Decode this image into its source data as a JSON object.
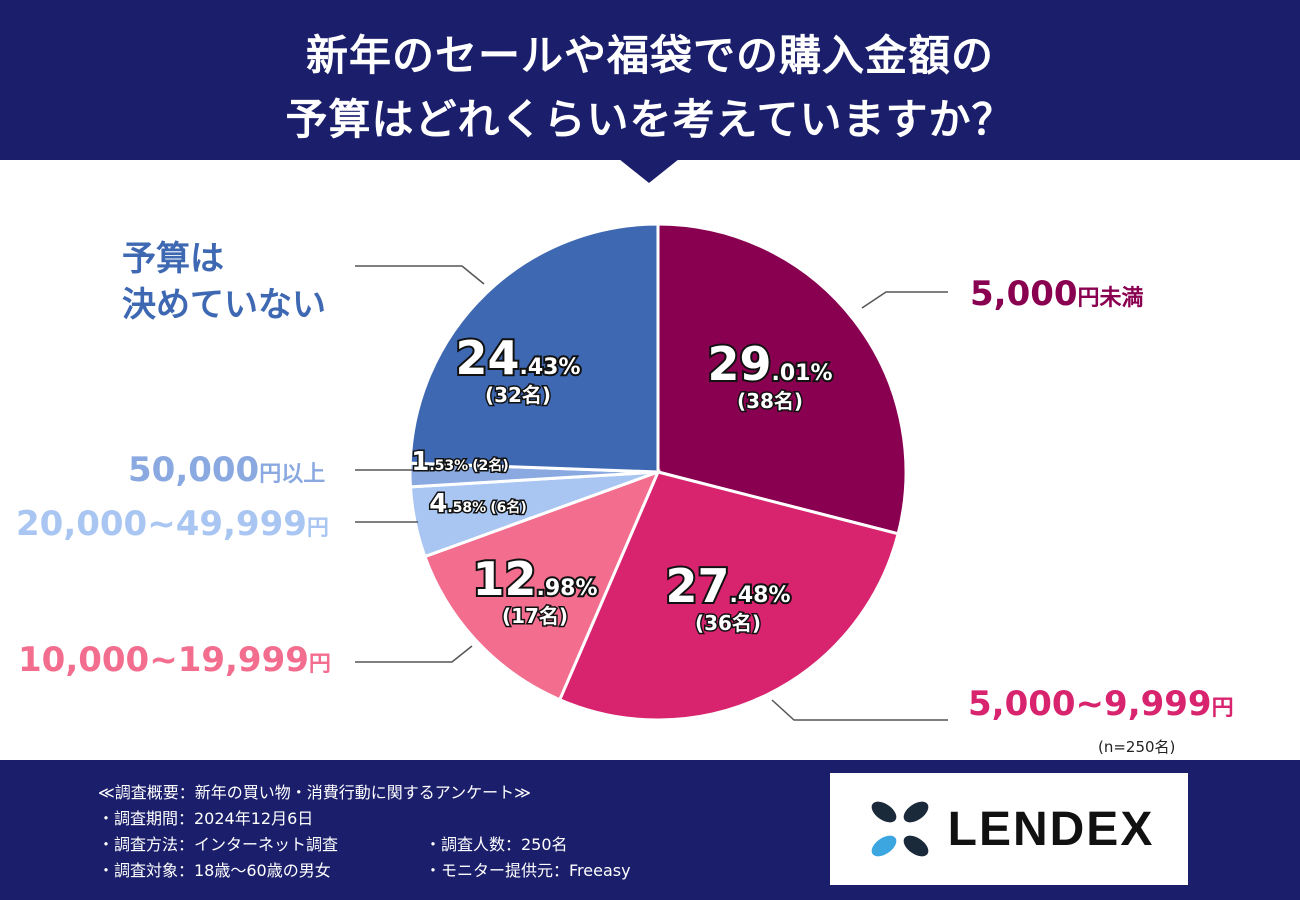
{
  "header": {
    "line1": "新年のセールや福袋での購入金額の",
    "line2": "予算はどれくらいを考えていますか？"
  },
  "colors": {
    "navy": "#1b1f6b",
    "under5000": "#8a0051",
    "r5000_9999": "#d8246e",
    "r10000_19999": "#f26d8e",
    "r20000_49999": "#a9c6f3",
    "over50000": "#8aa9e0",
    "undecided": "#3f68b3"
  },
  "chart_data": {
    "type": "pie",
    "title": "新年のセールや福袋での購入金額の予算はどれくらいを考えていますか？",
    "sample_note": "(n=250名)",
    "slices": [
      {
        "label": "5,000円未満",
        "label_num": "5,000",
        "label_suffix": "円未満",
        "pct_int": "29",
        "pct_dec": ".01%",
        "count": "(38名)",
        "value": 29.01,
        "color": "#8a0051"
      },
      {
        "label": "5,000~9,999円",
        "label_num": "5,000~9,999",
        "label_suffix": "円",
        "pct_int": "27",
        "pct_dec": ".48%",
        "count": "(36名)",
        "value": 27.48,
        "color": "#d8246e"
      },
      {
        "label": "10,000~19,999円",
        "label_num": "10,000~19,999",
        "label_suffix": "円",
        "pct_int": "12",
        "pct_dec": ".98%",
        "count": "(17名)",
        "value": 12.98,
        "color": "#f26d8e"
      },
      {
        "label": "20,000~49,999円",
        "label_num": "20,000~49,999",
        "label_suffix": "円",
        "pct_int": "4",
        "pct_dec": ".58%",
        "count": "(6名)",
        "value": 4.58,
        "color": "#a9c6f3"
      },
      {
        "label": "50,000円以上",
        "label_num": "50,000",
        "label_suffix": "円以上",
        "pct_int": "1",
        "pct_dec": ".53%",
        "count": "(2名)",
        "value": 1.53,
        "color": "#8aa9e0"
      },
      {
        "label": "予算は決めていない",
        "label_line1": "予算は",
        "label_line2": "決めていない",
        "pct_int": "24",
        "pct_dec": ".43%",
        "count": "(32名)",
        "value": 24.43,
        "color": "#3f68b3"
      }
    ]
  },
  "footer": {
    "survey_title": "≪調査概要：新年の買い物・消費行動に関するアンケート≫",
    "period": "・調査期間：2024年12月6日",
    "method": "・調査方法：インターネット調査",
    "target": "・調査対象：18歳〜60歳の男女",
    "respondents": "・調査人数：250名",
    "provider": "・モニター提供元：Freeasy",
    "logo_text": "LENDEX"
  }
}
